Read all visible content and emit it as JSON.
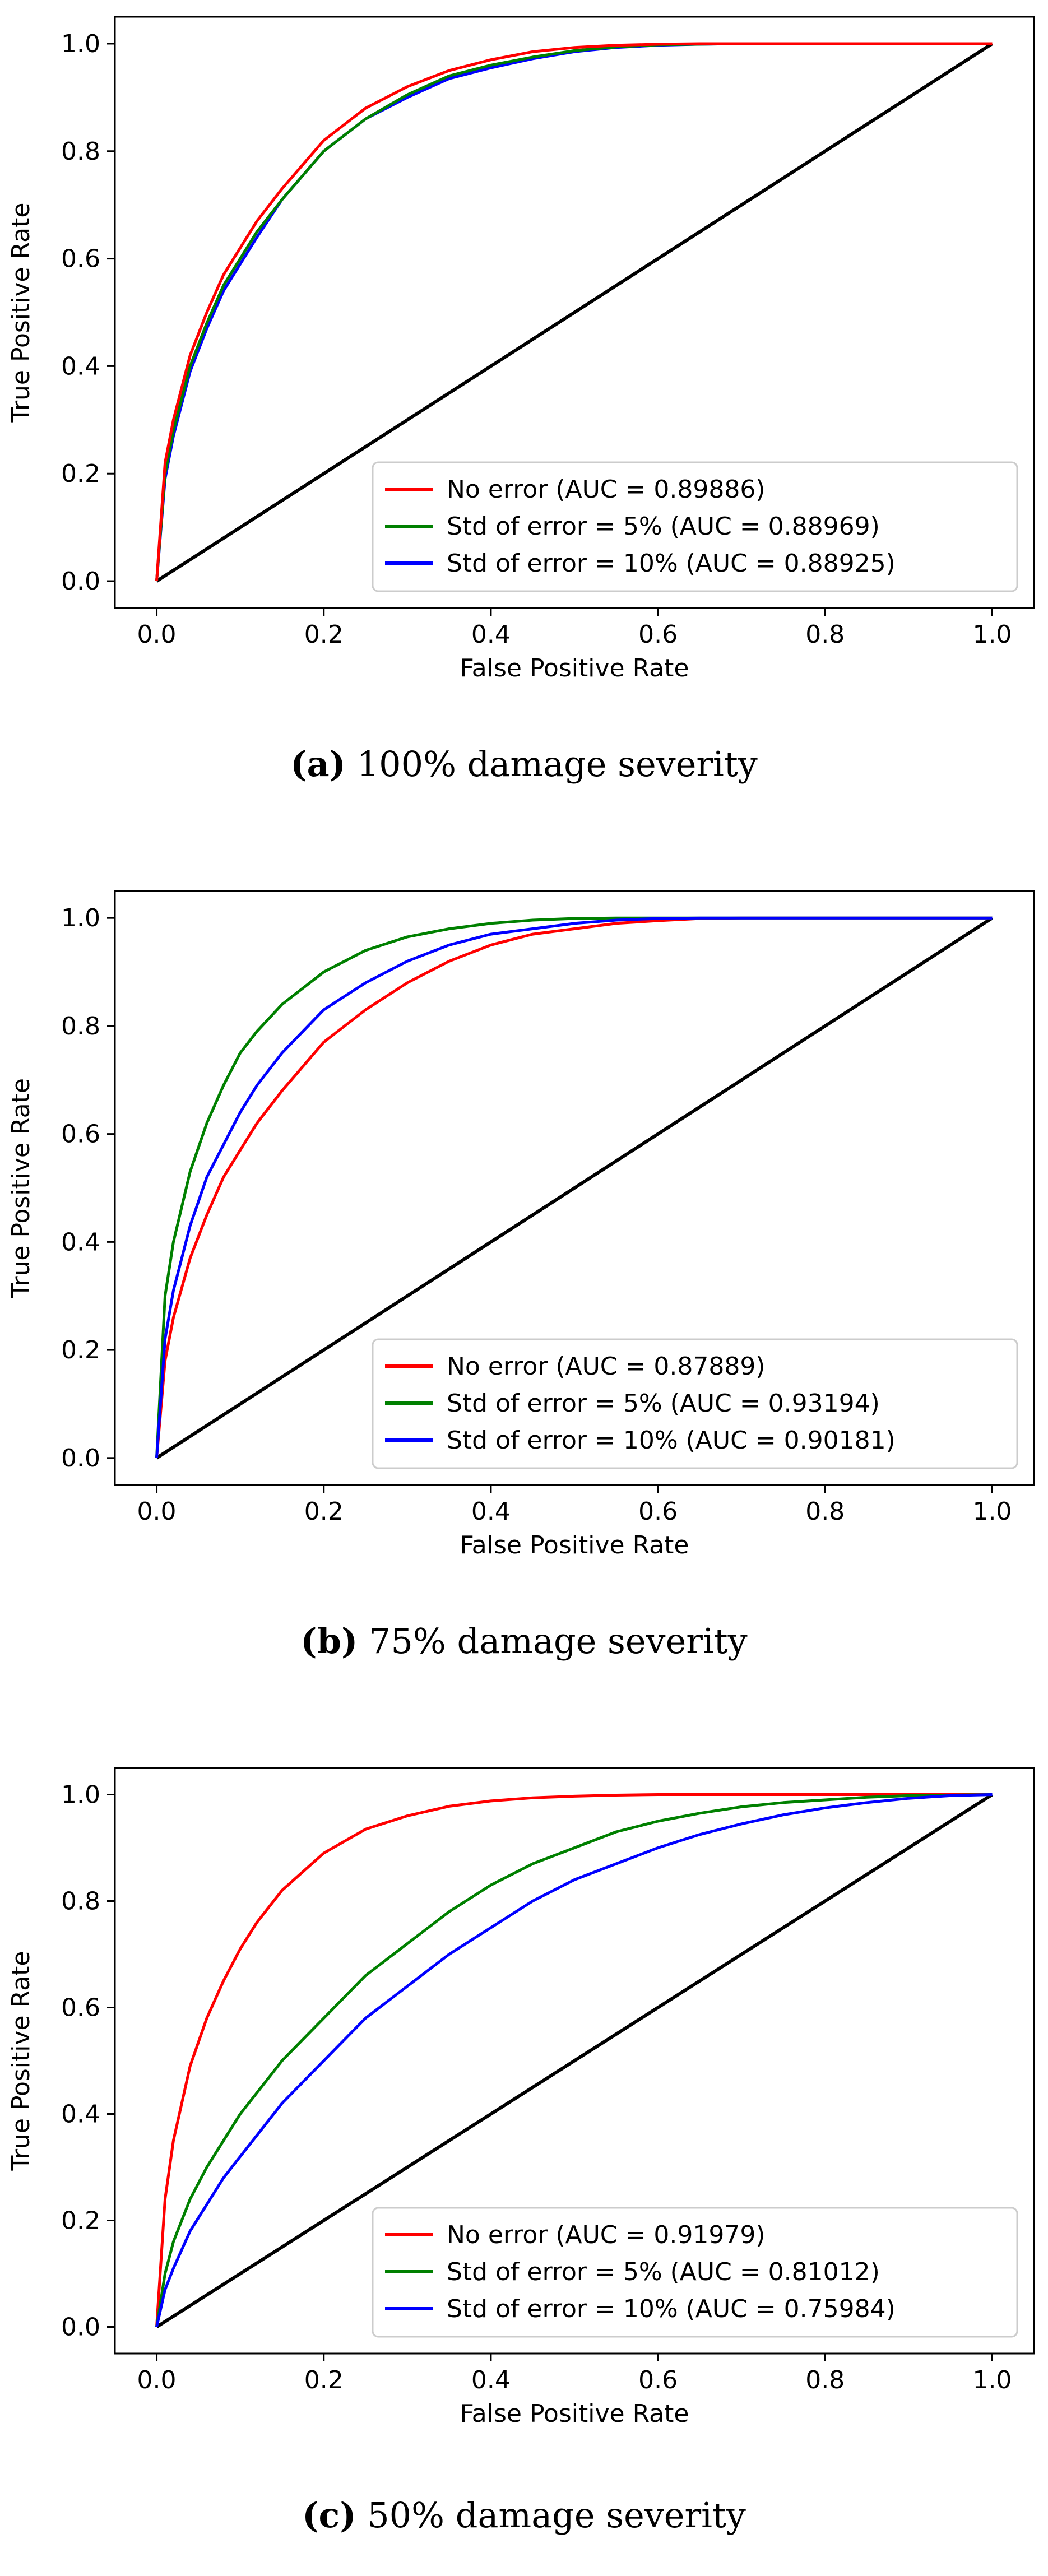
{
  "figure": {
    "x_axis_label": "False Positive Rate",
    "y_axis_label": "True Positive Rate",
    "legend_placement": "lower-right",
    "colors": {
      "no_error": "#ff0000",
      "std5": "#008000",
      "std10": "#0000ff",
      "diagonal": "#000000"
    }
  },
  "chart_data": [
    {
      "type": "line",
      "caption_letter": "(a)",
      "caption_text": " 100% damage severity",
      "xlabel": "False Positive Rate",
      "ylabel": "True Positive Rate",
      "xlim": [
        -0.05,
        1.05
      ],
      "ylim": [
        -0.05,
        1.05
      ],
      "x_ticks": [
        "0.0",
        "0.2",
        "0.4",
        "0.6",
        "0.8",
        "1.0"
      ],
      "y_ticks": [
        "0.0",
        "0.2",
        "0.4",
        "0.6",
        "0.8",
        "1.0"
      ],
      "diagonal": {
        "x": [
          0,
          1
        ],
        "y": [
          0,
          1
        ]
      },
      "series": [
        {
          "name": "No error (AUC = 0.89886)",
          "color": "#ff0000",
          "x": [
            0,
            0.01,
            0.02,
            0.04,
            0.06,
            0.08,
            0.1,
            0.12,
            0.15,
            0.2,
            0.25,
            0.3,
            0.35,
            0.4,
            0.45,
            0.5,
            0.55,
            0.6,
            0.65,
            0.7,
            1.0
          ],
          "y": [
            0,
            0.22,
            0.3,
            0.42,
            0.5,
            0.57,
            0.62,
            0.67,
            0.73,
            0.82,
            0.88,
            0.92,
            0.95,
            0.97,
            0.985,
            0.993,
            0.997,
            0.999,
            1.0,
            1.0,
            1.0
          ]
        },
        {
          "name": "Std of error = 5% (AUC = 0.88969)",
          "color": "#008000",
          "x": [
            0,
            0.01,
            0.02,
            0.04,
            0.06,
            0.08,
            0.1,
            0.12,
            0.15,
            0.2,
            0.25,
            0.3,
            0.35,
            0.4,
            0.45,
            0.5,
            0.55,
            0.6,
            0.65,
            0.7,
            1.0
          ],
          "y": [
            0,
            0.2,
            0.28,
            0.4,
            0.48,
            0.55,
            0.6,
            0.65,
            0.71,
            0.8,
            0.86,
            0.905,
            0.94,
            0.96,
            0.975,
            0.987,
            0.994,
            0.998,
            0.999,
            1.0,
            1.0
          ]
        },
        {
          "name": "Std of error = 10% (AUC = 0.88925)",
          "color": "#0000ff",
          "x": [
            0,
            0.01,
            0.02,
            0.04,
            0.06,
            0.08,
            0.1,
            0.12,
            0.15,
            0.2,
            0.25,
            0.3,
            0.35,
            0.4,
            0.45,
            0.5,
            0.55,
            0.6,
            0.65,
            0.7,
            1.0
          ],
          "y": [
            0,
            0.19,
            0.27,
            0.39,
            0.47,
            0.54,
            0.59,
            0.64,
            0.71,
            0.8,
            0.86,
            0.9,
            0.935,
            0.955,
            0.972,
            0.985,
            0.993,
            0.997,
            0.999,
            1.0,
            1.0
          ]
        }
      ]
    },
    {
      "type": "line",
      "caption_letter": "(b)",
      "caption_text": " 75% damage severity",
      "xlabel": "False Positive Rate",
      "ylabel": "True Positive Rate",
      "xlim": [
        -0.05,
        1.05
      ],
      "ylim": [
        -0.05,
        1.05
      ],
      "x_ticks": [
        "0.0",
        "0.2",
        "0.4",
        "0.6",
        "0.8",
        "1.0"
      ],
      "y_ticks": [
        "0.0",
        "0.2",
        "0.4",
        "0.6",
        "0.8",
        "1.0"
      ],
      "diagonal": {
        "x": [
          0,
          1
        ],
        "y": [
          0,
          1
        ]
      },
      "series": [
        {
          "name": "No error (AUC = 0.87889)",
          "color": "#ff0000",
          "x": [
            0,
            0.01,
            0.02,
            0.04,
            0.06,
            0.08,
            0.1,
            0.12,
            0.15,
            0.2,
            0.25,
            0.3,
            0.35,
            0.4,
            0.45,
            0.5,
            0.55,
            0.6,
            0.65,
            0.7,
            1.0
          ],
          "y": [
            0,
            0.18,
            0.26,
            0.37,
            0.45,
            0.52,
            0.57,
            0.62,
            0.68,
            0.77,
            0.83,
            0.88,
            0.92,
            0.95,
            0.97,
            0.98,
            0.99,
            0.995,
            0.999,
            1.0,
            1.0
          ]
        },
        {
          "name": "Std of error = 5% (AUC = 0.93194)",
          "color": "#008000",
          "x": [
            0,
            0.01,
            0.02,
            0.04,
            0.06,
            0.08,
            0.1,
            0.12,
            0.15,
            0.2,
            0.25,
            0.3,
            0.35,
            0.4,
            0.45,
            0.5,
            0.55,
            0.6,
            0.65,
            0.7,
            1.0
          ],
          "y": [
            0,
            0.3,
            0.4,
            0.53,
            0.62,
            0.69,
            0.75,
            0.79,
            0.84,
            0.9,
            0.94,
            0.965,
            0.98,
            0.99,
            0.996,
            0.999,
            1.0,
            1.0,
            1.0,
            1.0,
            1.0
          ]
        },
        {
          "name": "Std of error = 10% (AUC = 0.90181)",
          "color": "#0000ff",
          "x": [
            0,
            0.01,
            0.02,
            0.04,
            0.06,
            0.08,
            0.1,
            0.12,
            0.15,
            0.2,
            0.25,
            0.3,
            0.35,
            0.4,
            0.45,
            0.5,
            0.55,
            0.6,
            0.65,
            0.7,
            1.0
          ],
          "y": [
            0,
            0.22,
            0.31,
            0.43,
            0.52,
            0.58,
            0.64,
            0.69,
            0.75,
            0.83,
            0.88,
            0.92,
            0.95,
            0.97,
            0.98,
            0.99,
            0.996,
            0.999,
            1.0,
            1.0,
            1.0
          ]
        }
      ]
    },
    {
      "type": "line",
      "caption_letter": "(c)",
      "caption_text": " 50% damage severity",
      "xlabel": "False Positive Rate",
      "ylabel": "True Positive Rate",
      "xlim": [
        -0.05,
        1.05
      ],
      "ylim": [
        -0.05,
        1.05
      ],
      "x_ticks": [
        "0.0",
        "0.2",
        "0.4",
        "0.6",
        "0.8",
        "1.0"
      ],
      "y_ticks": [
        "0.0",
        "0.2",
        "0.4",
        "0.6",
        "0.8",
        "1.0"
      ],
      "diagonal": {
        "x": [
          0,
          1
        ],
        "y": [
          0,
          1
        ]
      },
      "series": [
        {
          "name": "No error (AUC = 0.91979)",
          "color": "#ff0000",
          "x": [
            0,
            0.01,
            0.02,
            0.04,
            0.06,
            0.08,
            0.1,
            0.12,
            0.15,
            0.2,
            0.25,
            0.3,
            0.35,
            0.4,
            0.45,
            0.5,
            0.55,
            0.6,
            0.65,
            0.7,
            1.0
          ],
          "y": [
            0,
            0.24,
            0.35,
            0.49,
            0.58,
            0.65,
            0.71,
            0.76,
            0.82,
            0.89,
            0.935,
            0.96,
            0.978,
            0.988,
            0.994,
            0.997,
            0.999,
            1.0,
            1.0,
            1.0,
            1.0
          ]
        },
        {
          "name": "Std of error = 5% (AUC = 0.81012)",
          "color": "#008000",
          "x": [
            0,
            0.01,
            0.02,
            0.04,
            0.06,
            0.08,
            0.1,
            0.12,
            0.15,
            0.2,
            0.25,
            0.3,
            0.35,
            0.4,
            0.45,
            0.5,
            0.55,
            0.6,
            0.65,
            0.7,
            0.75,
            0.8,
            0.85,
            0.9,
            0.95,
            1.0
          ],
          "y": [
            0,
            0.1,
            0.16,
            0.24,
            0.3,
            0.35,
            0.4,
            0.44,
            0.5,
            0.58,
            0.66,
            0.72,
            0.78,
            0.83,
            0.87,
            0.9,
            0.93,
            0.95,
            0.965,
            0.977,
            0.985,
            0.99,
            0.995,
            0.998,
            0.999,
            1.0
          ]
        },
        {
          "name": "Std of error = 10% (AUC = 0.75984)",
          "color": "#0000ff",
          "x": [
            0,
            0.01,
            0.02,
            0.04,
            0.06,
            0.08,
            0.1,
            0.12,
            0.15,
            0.2,
            0.25,
            0.3,
            0.35,
            0.4,
            0.45,
            0.5,
            0.55,
            0.6,
            0.65,
            0.7,
            0.75,
            0.8,
            0.85,
            0.9,
            0.95,
            1.0
          ],
          "y": [
            0,
            0.07,
            0.11,
            0.18,
            0.23,
            0.28,
            0.32,
            0.36,
            0.42,
            0.5,
            0.58,
            0.64,
            0.7,
            0.75,
            0.8,
            0.84,
            0.87,
            0.9,
            0.925,
            0.945,
            0.962,
            0.975,
            0.985,
            0.993,
            0.998,
            1.0
          ]
        }
      ]
    }
  ]
}
